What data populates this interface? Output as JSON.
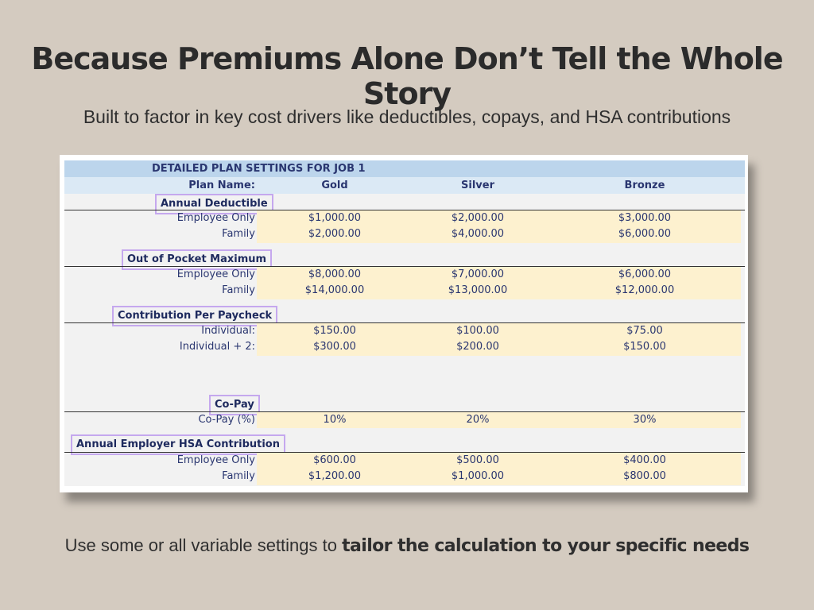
{
  "headline": "Because Premiums Alone Don’t Tell the Whole Story",
  "subline": "Built to factor in key cost drivers like deductibles, copays, and HSA contributions",
  "footer": {
    "prefix": "Use some or all variable settings to ",
    "bold": "tailor the calculation to your specific needs"
  },
  "sheet": {
    "title": "DETAILED PLAN SETTINGS FOR JOB 1",
    "plan_name_label": "Plan Name:",
    "plans": [
      "Gold",
      "Silver",
      "Bronze"
    ],
    "sections": [
      {
        "name": "Annual Deductible",
        "rows": [
          {
            "label": "Employee Only",
            "values": [
              "$1,000.00",
              "$2,000.00",
              "$3,000.00"
            ]
          },
          {
            "label": "Family",
            "values": [
              "$2,000.00",
              "$4,000.00",
              "$6,000.00"
            ]
          }
        ]
      },
      {
        "name": "Out of Pocket Maximum",
        "rows": [
          {
            "label": "Employee Only",
            "values": [
              "$8,000.00",
              "$7,000.00",
              "$6,000.00"
            ]
          },
          {
            "label": "Family",
            "values": [
              "$14,000.00",
              "$13,000.00",
              "$12,000.00"
            ]
          }
        ]
      },
      {
        "name": "Contribution Per Paycheck",
        "rows": [
          {
            "label": "Individual:",
            "values": [
              "$150.00",
              "$100.00",
              "$75.00"
            ]
          },
          {
            "label": "Individual + 2:",
            "values": [
              "$300.00",
              "$200.00",
              "$150.00"
            ]
          }
        ]
      },
      {
        "name": "Co-Pay",
        "rows": [
          {
            "label": "Co-Pay (%)",
            "values": [
              "10%",
              "20%",
              "30%"
            ]
          }
        ]
      },
      {
        "name": "Annual Employer HSA Contribution",
        "rows": [
          {
            "label": "Employee Only",
            "values": [
              "$600.00",
              "$500.00",
              "$400.00"
            ]
          },
          {
            "label": "Family",
            "values": [
              "$1,200.00",
              "$1,000.00",
              "$800.00"
            ]
          }
        ]
      }
    ]
  },
  "colors": {
    "background": "#d4cbc0",
    "header_blue": "#bcd5ec",
    "header_light_blue": "#dbe9f5",
    "input_yellow": "#fdf1cf",
    "highlight_box": "#c5a8ee",
    "text_navy": "#2a3670"
  }
}
